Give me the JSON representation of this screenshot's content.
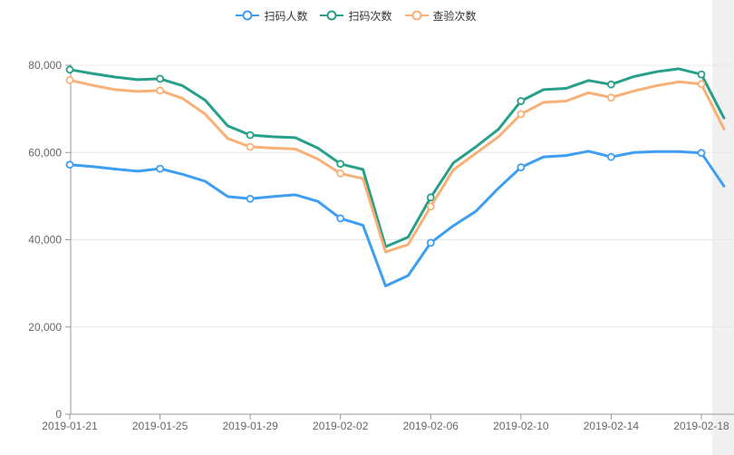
{
  "legend": {
    "items": [
      {
        "label": "扫码人数",
        "color": "#3d9ef2"
      },
      {
        "label": "扫码次数",
        "color": "#27a08a"
      },
      {
        "label": "查验次数",
        "color": "#f8b076"
      }
    ],
    "position": "top-center"
  },
  "chart_data": {
    "type": "line",
    "title": "",
    "xlabel": "",
    "ylabel": "",
    "ylim": [
      0,
      80000
    ],
    "grid": "horizontal-only",
    "legend_position": "top-center",
    "marker": "hollow-circle",
    "marker_every": 4,
    "x": [
      "2019-01-21",
      "2019-01-22",
      "2019-01-23",
      "2019-01-24",
      "2019-01-25",
      "2019-01-26",
      "2019-01-27",
      "2019-01-28",
      "2019-01-29",
      "2019-01-30",
      "2019-01-31",
      "2019-02-01",
      "2019-02-02",
      "2019-02-03",
      "2019-02-04",
      "2019-02-05",
      "2019-02-06",
      "2019-02-07",
      "2019-02-08",
      "2019-02-09",
      "2019-02-10",
      "2019-02-11",
      "2019-02-12",
      "2019-02-13",
      "2019-02-14",
      "2019-02-15",
      "2019-02-16",
      "2019-02-17",
      "2019-02-18",
      "2019-02-19"
    ],
    "x_tick_labels": [
      "2019-01-21",
      "2019-01-25",
      "2019-01-29",
      "2019-02-02",
      "2019-02-06",
      "2019-02-10",
      "2019-02-14",
      "2019-02-18"
    ],
    "y_ticks": [
      {
        "value": 0,
        "label": "0"
      },
      {
        "value": 20000,
        "label": "20,000"
      },
      {
        "value": 40000,
        "label": "40,000"
      },
      {
        "value": 60000,
        "label": "60,000"
      },
      {
        "value": 80000,
        "label": "80,000"
      }
    ],
    "series": [
      {
        "name": "扫码人数",
        "color": "#3d9ef2",
        "values": [
          57200,
          56800,
          56200,
          55700,
          56300,
          55000,
          53400,
          49900,
          49400,
          49900,
          50300,
          48800,
          44900,
          43300,
          29400,
          31800,
          39300,
          43200,
          46500,
          51800,
          56600,
          59000,
          59300,
          60300,
          59000,
          60000,
          60200,
          60200,
          59900,
          52300
        ]
      },
      {
        "name": "扫码次数",
        "color": "#27a08a",
        "values": [
          79000,
          78100,
          77300,
          76700,
          76900,
          75300,
          72000,
          66100,
          64000,
          63600,
          63400,
          61000,
          57400,
          56100,
          38400,
          40600,
          49700,
          57600,
          61300,
          65300,
          71800,
          74400,
          74700,
          76500,
          75600,
          77400,
          78500,
          79200,
          77900,
          67900
        ]
      },
      {
        "name": "查验次数",
        "color": "#f8b076",
        "values": [
          76600,
          75400,
          74400,
          74000,
          74200,
          72400,
          68800,
          63200,
          61300,
          61000,
          60800,
          58500,
          55200,
          54000,
          37200,
          38900,
          47600,
          56000,
          59800,
          63600,
          68800,
          71500,
          71800,
          73700,
          72600,
          74100,
          75300,
          76200,
          75700,
          65400
        ]
      }
    ]
  },
  "colors": {
    "axis_line": "#999999",
    "grid_line": "#e8e8e8",
    "tick_label": "#666666",
    "legend_text": "#333333",
    "right_strip": "#f0f0f1",
    "background": "#ffffff"
  }
}
